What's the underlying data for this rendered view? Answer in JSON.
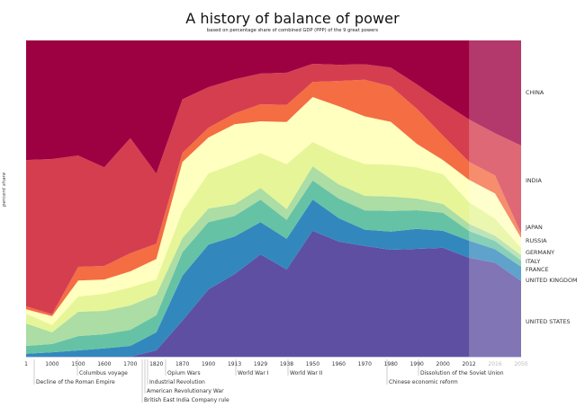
{
  "title": "A history of  balance of power",
  "subtitle": "based on percentage share of combined GDP (PPP) of the 9 great powers",
  "chart_data": {
    "type": "area",
    "stacked": true,
    "normalized": true,
    "title": "A history of  balance of power",
    "subtitle": "based on percentage share of combined GDP (PPP) of the 9 great powers",
    "xlabel": "",
    "ylabel": "percent share",
    "ylim": [
      0,
      100
    ],
    "grid": false,
    "legend_position": "right",
    "categories": [
      "1",
      "1000",
      "1500",
      "1600",
      "1700",
      "1820",
      "1870",
      "1900",
      "1913",
      "1929",
      "1938",
      "1950",
      "1960",
      "1970",
      "1980",
      "1990",
      "2000",
      "2012",
      "2016",
      "2050"
    ],
    "projected_categories": [
      "2016",
      "2050"
    ],
    "projection_start": "2012",
    "series": [
      {
        "name": "UNITED STATES",
        "color": "#5e4fa2",
        "values": [
          0,
          0,
          0,
          0,
          0,
          2.0,
          11.4,
          21.3,
          26.1,
          32.4,
          27.6,
          39.8,
          36.4,
          34.4,
          33.5,
          34.1,
          34.4,
          31.3,
          29.8,
          23.9
        ]
      },
      {
        "name": "UNITED KINGDOM",
        "color": "#3288bd",
        "values": [
          0.9,
          1.4,
          2.0,
          2.6,
          3.4,
          5.7,
          14.2,
          14.2,
          11.9,
          10.2,
          9.7,
          9.9,
          7.4,
          5.1,
          5.7,
          6.3,
          5.4,
          5.4,
          4.3,
          4.5
        ]
      },
      {
        "name": "FRANCE",
        "color": "#66c2a5",
        "values": [
          2.5,
          2.6,
          4.5,
          4.5,
          5.1,
          5.4,
          7.4,
          7.1,
          6.5,
          7.1,
          6.0,
          6.0,
          6.2,
          6.0,
          6.5,
          5.9,
          5.7,
          3.1,
          2.6,
          2.0
        ]
      },
      {
        "name": "ITALY",
        "color": "#abdda4",
        "values": [
          7.1,
          3.7,
          7.7,
          7.4,
          7.7,
          6.5,
          4.5,
          4.3,
          3.7,
          3.7,
          3.4,
          4.5,
          4.5,
          4.5,
          4.5,
          3.7,
          2.8,
          2.3,
          1.7,
          1.7
        ]
      },
      {
        "name": "GERMANY",
        "color": "#e6f598",
        "values": [
          3.1,
          2.3,
          4.8,
          5.4,
          5.7,
          4.8,
          8.5,
          11.1,
          12.8,
          11.1,
          14.2,
          7.7,
          9.4,
          9.9,
          10.0,
          9.9,
          9.4,
          6.8,
          5.4,
          2.3
        ]
      },
      {
        "name": "RUSSIA",
        "color": "#ffffbf",
        "values": [
          1.4,
          2.8,
          5.1,
          4.5,
          5.1,
          6.5,
          15.6,
          11.4,
          12.5,
          10.0,
          13.4,
          14.2,
          15.3,
          14.8,
          13.4,
          7.4,
          4.5,
          7.1,
          8.0,
          3.1
        ]
      },
      {
        "name": "JAPAN",
        "color": "#f46d43",
        "values": [
          0.9,
          0.6,
          4.3,
          4.3,
          5.7,
          4.8,
          2.8,
          3.1,
          3.4,
          5.4,
          5.4,
          4.8,
          8.0,
          11.4,
          11.1,
          11.1,
          7.7,
          5.7,
          5.7,
          1.4
        ]
      },
      {
        "name": "INDIA",
        "color": "#d53e4f",
        "values": [
          46.3,
          49.1,
          35.2,
          31.2,
          36.4,
          22.2,
          17.0,
          12.8,
          10.8,
          9.7,
          10.2,
          5.7,
          5.1,
          4.8,
          5.9,
          7.7,
          10.5,
          13.4,
          13.4,
          27.8
        ]
      },
      {
        "name": "CHINA",
        "color": "#9e0142",
        "values": [
          37.8,
          37.5,
          36.4,
          40.1,
          30.9,
          42.1,
          18.6,
          14.8,
          12.3,
          10.5,
          10.2,
          7.4,
          7.7,
          7.4,
          8.5,
          13.9,
          19.6,
          25.0,
          29.5,
          33.2
        ]
      }
    ],
    "events": [
      {
        "label": "Decline of the Roman Empire",
        "at": "1000"
      },
      {
        "label": "Columbus voyage",
        "at": "1500"
      },
      {
        "label": "British East India Company rule",
        "at": "1757"
      },
      {
        "label": "American Revolutionary War",
        "at": "1776"
      },
      {
        "label": "Industrial Revolution",
        "at": "1800"
      },
      {
        "label": "Opium Wars",
        "at": "1840"
      },
      {
        "label": "World War I",
        "at": "1913"
      },
      {
        "label": "World War II",
        "at": "1938"
      },
      {
        "label": "Chinese economic reform",
        "at": "1980"
      },
      {
        "label": "Dissolution of the Soviet Union",
        "at": "1990"
      }
    ]
  }
}
